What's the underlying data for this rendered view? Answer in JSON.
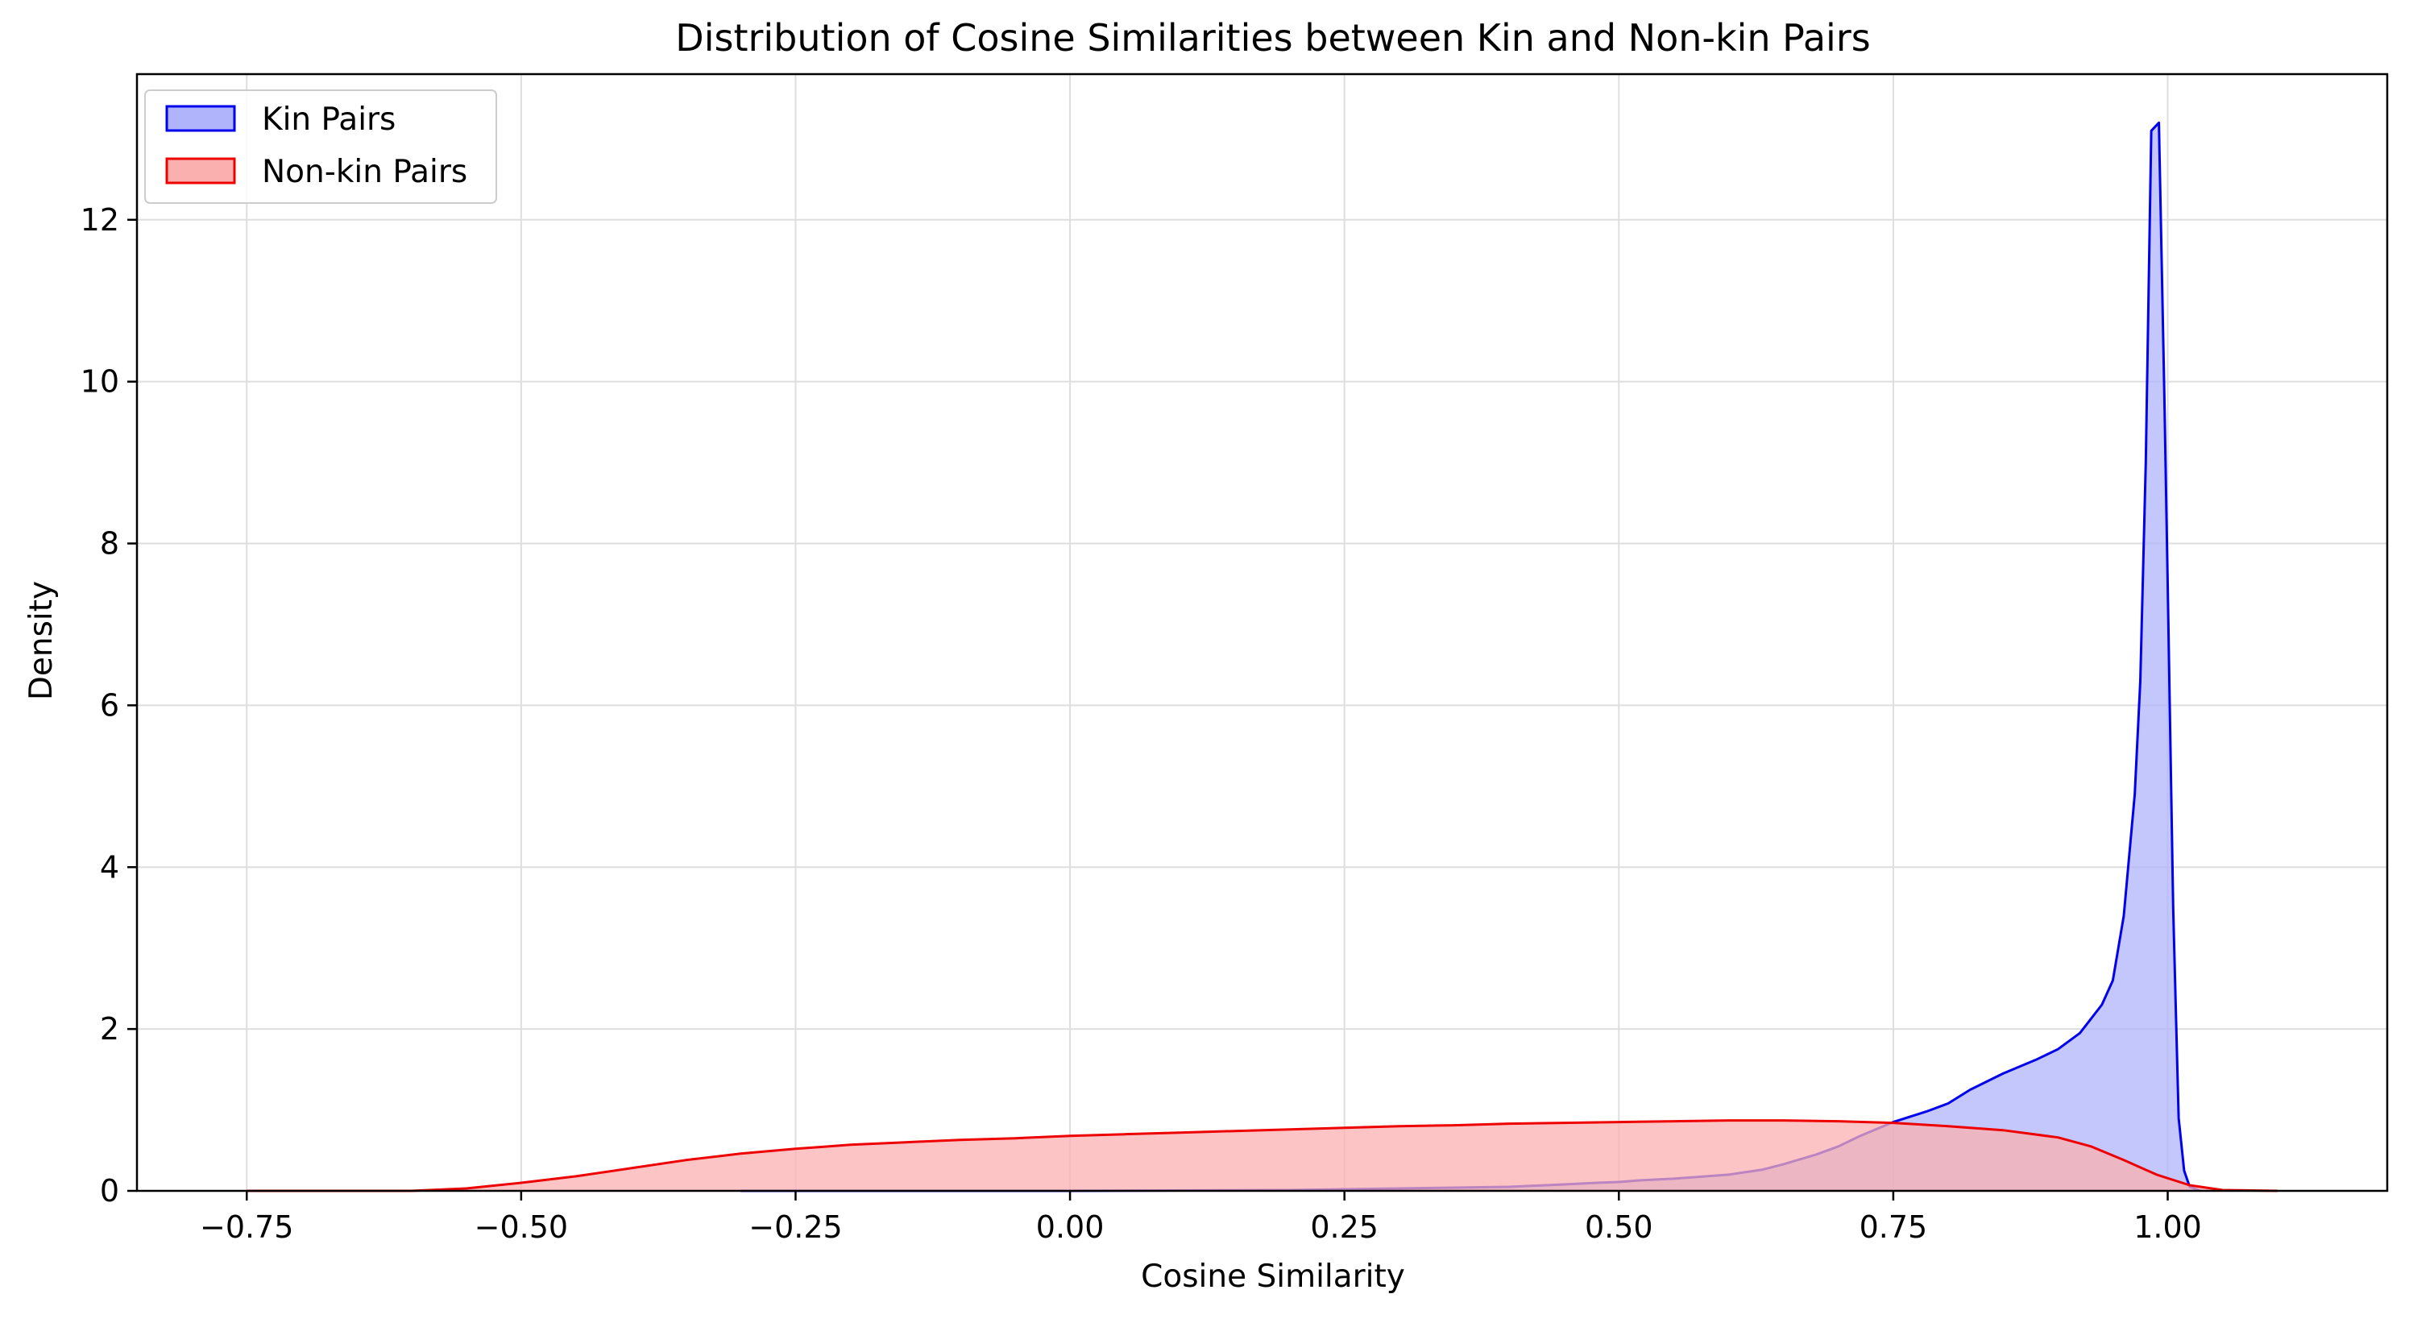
{
  "chart_data": {
    "type": "area",
    "title": "Distribution of Cosine Similarities between Kin and Non-kin Pairs",
    "xlabel": "Cosine Similarity",
    "ylabel": "Density",
    "xlim": [
      -0.85,
      1.2
    ],
    "ylim": [
      0,
      13.8
    ],
    "x_ticks": [
      -0.75,
      -0.5,
      -0.25,
      0.0,
      0.25,
      0.5,
      0.75,
      1.0
    ],
    "x_tick_labels": [
      "−0.75",
      "−0.50",
      "−0.25",
      "0.00",
      "0.25",
      "0.50",
      "0.75",
      "1.00"
    ],
    "y_ticks": [
      0,
      2,
      4,
      6,
      8,
      10,
      12
    ],
    "y_tick_labels": [
      "0",
      "2",
      "4",
      "6",
      "8",
      "10",
      "12"
    ],
    "grid": true,
    "legend_position": "top-left",
    "series": [
      {
        "name": "Kin Pairs",
        "line_color": "#0000ee",
        "fill_color": "#b0b4fa",
        "points": [
          [
            -0.3,
            0.0
          ],
          [
            0.0,
            0.0
          ],
          [
            0.1,
            0.005
          ],
          [
            0.2,
            0.01
          ],
          [
            0.25,
            0.02
          ],
          [
            0.3,
            0.03
          ],
          [
            0.35,
            0.04
          ],
          [
            0.4,
            0.05
          ],
          [
            0.45,
            0.08
          ],
          [
            0.48,
            0.1
          ],
          [
            0.5,
            0.11
          ],
          [
            0.52,
            0.13
          ],
          [
            0.55,
            0.15
          ],
          [
            0.6,
            0.2
          ],
          [
            0.63,
            0.26
          ],
          [
            0.65,
            0.33
          ],
          [
            0.68,
            0.45
          ],
          [
            0.7,
            0.55
          ],
          [
            0.72,
            0.68
          ],
          [
            0.75,
            0.85
          ],
          [
            0.78,
            0.98
          ],
          [
            0.8,
            1.08
          ],
          [
            0.82,
            1.25
          ],
          [
            0.85,
            1.45
          ],
          [
            0.88,
            1.62
          ],
          [
            0.9,
            1.75
          ],
          [
            0.92,
            1.95
          ],
          [
            0.94,
            2.3
          ],
          [
            0.95,
            2.6
          ],
          [
            0.96,
            3.4
          ],
          [
            0.97,
            4.9
          ],
          [
            0.975,
            6.3
          ],
          [
            0.98,
            9.0
          ],
          [
            0.985,
            13.1
          ],
          [
            0.992,
            13.2
          ],
          [
            0.997,
            9.8
          ],
          [
            1.0,
            7.5
          ],
          [
            1.005,
            3.5
          ],
          [
            1.01,
            0.9
          ],
          [
            1.015,
            0.25
          ],
          [
            1.02,
            0.05
          ],
          [
            1.03,
            0.0
          ]
        ]
      },
      {
        "name": "Non-kin Pairs",
        "line_color": "#ee0000",
        "fill_color": "#fbb0b0",
        "points": [
          [
            -0.75,
            0.0
          ],
          [
            -0.6,
            0.0
          ],
          [
            -0.55,
            0.03
          ],
          [
            -0.5,
            0.1
          ],
          [
            -0.45,
            0.18
          ],
          [
            -0.4,
            0.28
          ],
          [
            -0.35,
            0.38
          ],
          [
            -0.3,
            0.46
          ],
          [
            -0.25,
            0.52
          ],
          [
            -0.2,
            0.57
          ],
          [
            -0.15,
            0.6
          ],
          [
            -0.1,
            0.63
          ],
          [
            -0.05,
            0.65
          ],
          [
            0.0,
            0.68
          ],
          [
            0.05,
            0.7
          ],
          [
            0.1,
            0.72
          ],
          [
            0.15,
            0.74
          ],
          [
            0.2,
            0.76
          ],
          [
            0.25,
            0.78
          ],
          [
            0.3,
            0.8
          ],
          [
            0.35,
            0.81
          ],
          [
            0.4,
            0.83
          ],
          [
            0.45,
            0.84
          ],
          [
            0.5,
            0.85
          ],
          [
            0.55,
            0.86
          ],
          [
            0.6,
            0.87
          ],
          [
            0.65,
            0.87
          ],
          [
            0.7,
            0.86
          ],
          [
            0.75,
            0.84
          ],
          [
            0.8,
            0.8
          ],
          [
            0.85,
            0.75
          ],
          [
            0.9,
            0.66
          ],
          [
            0.93,
            0.55
          ],
          [
            0.96,
            0.38
          ],
          [
            0.99,
            0.2
          ],
          [
            1.02,
            0.07
          ],
          [
            1.05,
            0.01
          ],
          [
            1.1,
            0.0
          ]
        ]
      }
    ]
  }
}
